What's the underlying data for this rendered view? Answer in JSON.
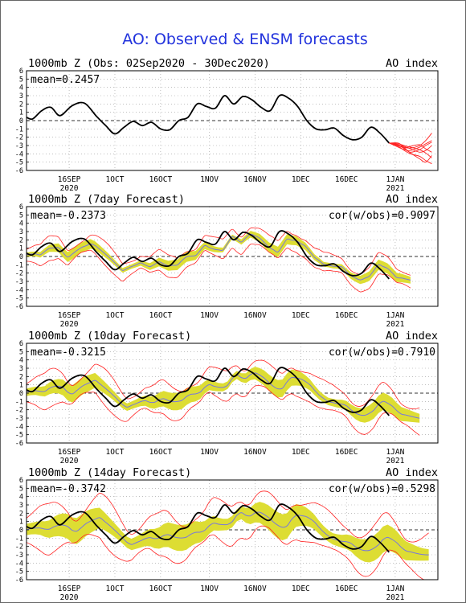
{
  "title": "AO: Observed & ENSM forecasts",
  "colors": {
    "title": "#2233dd",
    "observed": "#000000",
    "ensemble_members": "#ff2222",
    "ensemble_mean": "#7777dd",
    "spread_band": "#dddd33",
    "grid": "#999999"
  },
  "x_ticks": [
    {
      "label": "16SEP",
      "year": "2020",
      "date": "2020-09-16"
    },
    {
      "label": "1OCT",
      "year": "",
      "date": "2020-10-01"
    },
    {
      "label": "16OCT",
      "year": "",
      "date": "2020-10-16"
    },
    {
      "label": "1NOV",
      "year": "",
      "date": "2020-11-01"
    },
    {
      "label": "16NOV",
      "year": "",
      "date": "2020-11-16"
    },
    {
      "label": "1DEC",
      "year": "",
      "date": "2020-12-01"
    },
    {
      "label": "16DEC",
      "year": "",
      "date": "2020-12-16"
    },
    {
      "label": "1JAN",
      "year": "2021",
      "date": "2021-01-01"
    }
  ],
  "y_ticks": [
    6,
    5,
    4,
    3,
    2,
    1,
    0,
    -1,
    -2,
    -3,
    -4,
    -5,
    -6
  ],
  "chart_data": [
    {
      "type": "line",
      "title": "1000mb Z (Obs: 02Sep2020 - 30Dec2020)",
      "right_title": "AO index",
      "stat_left": "mean=0.2457",
      "stat_right": "",
      "ylim": [
        -6,
        6
      ],
      "xlim": [
        "2020-09-02",
        "2021-01-15"
      ],
      "grid": true,
      "series": [
        {
          "role": "observed",
          "x": [
            "2020-09-02",
            "2020-09-04",
            "2020-09-07",
            "2020-09-10",
            "2020-09-13",
            "2020-09-17",
            "2020-09-21",
            "2020-09-25",
            "2020-09-28",
            "2020-10-01",
            "2020-10-04",
            "2020-10-07",
            "2020-10-10",
            "2020-10-13",
            "2020-10-16",
            "2020-10-19",
            "2020-10-22",
            "2020-10-25",
            "2020-10-28",
            "2020-10-31",
            "2020-11-03",
            "2020-11-06",
            "2020-11-09",
            "2020-11-12",
            "2020-11-15",
            "2020-11-18",
            "2020-11-21",
            "2020-11-24",
            "2020-11-27",
            "2020-11-30",
            "2020-12-03",
            "2020-12-06",
            "2020-12-09",
            "2020-12-12",
            "2020-12-15",
            "2020-12-18",
            "2020-12-21",
            "2020-12-24",
            "2020-12-27",
            "2020-12-30"
          ],
          "values": [
            0.4,
            0.2,
            1.2,
            1.6,
            0.6,
            1.8,
            2.1,
            0.5,
            -0.6,
            -1.6,
            -0.8,
            -0.1,
            -0.6,
            -0.2,
            -1.0,
            -1.1,
            0.0,
            0.4,
            2.0,
            1.7,
            1.5,
            3.0,
            2.0,
            2.9,
            2.5,
            1.6,
            1.2,
            3.0,
            2.7,
            1.7,
            0.0,
            -1.0,
            -1.1,
            -0.9,
            -1.8,
            -2.3,
            -2.0,
            -0.8,
            -1.5,
            -2.7
          ]
        },
        {
          "role": "ensemble_members",
          "members": [
            [
              -2.7,
              -2.7,
              -3.2,
              -3.3,
              -3.0,
              -2.4,
              -1.5
            ],
            [
              -2.7,
              -2.9,
              -3.4,
              -3.8,
              -3.5,
              -3.0,
              -2.6
            ],
            [
              -2.7,
              -3.0,
              -3.3,
              -3.1,
              -2.9,
              -3.4,
              -3.8
            ],
            [
              -2.7,
              -3.1,
              -3.6,
              -4.0,
              -4.3,
              -4.8,
              -5.2
            ],
            [
              -2.7,
              -2.8,
              -3.0,
              -3.2,
              -3.5,
              -3.9,
              -4.5
            ],
            [
              -2.7,
              -3.2,
              -3.5,
              -3.6,
              -3.2,
              -2.8,
              -2.4
            ],
            [
              -2.7,
              -2.9,
              -3.3,
              -3.9,
              -4.6,
              -5.0,
              -4.2
            ],
            [
              -2.7,
              -3.0,
              -3.1,
              -3.4,
              -3.8,
              -3.6,
              -3.0
            ]
          ],
          "x": [
            "2020-12-30",
            "2021-01-02",
            "2021-01-04",
            "2021-01-06",
            "2021-01-09",
            "2021-01-11",
            "2021-01-13"
          ]
        }
      ]
    },
    {
      "type": "line",
      "title": "1000mb Z (7day Forecast)",
      "right_title": "AO index",
      "stat_left": "mean=-0.2373",
      "stat_right": "cor(w/obs)=0.9097",
      "ylim": [
        -6,
        6
      ],
      "xlim": [
        "2020-09-02",
        "2021-01-15"
      ],
      "grid": true,
      "forecast": {
        "lead_days": 7,
        "mean_offset": -0.35,
        "spread": 0.6,
        "envelope": 1.3,
        "extend_to": "2021-01-06"
      }
    },
    {
      "type": "line",
      "title": "1000mb Z (10day Forecast)",
      "right_title": "AO index",
      "stat_left": "mean=-0.3215",
      "stat_right": "cor(w/obs)=0.7910",
      "ylim": [
        -6,
        6
      ],
      "xlim": [
        "2020-09-02",
        "2021-01-15"
      ],
      "grid": true,
      "forecast": {
        "lead_days": 10,
        "mean_offset": -0.4,
        "spread": 1.0,
        "envelope": 2.0,
        "extend_to": "2021-01-09"
      }
    },
    {
      "type": "line",
      "title": "1000mb Z (14day Forecast)",
      "right_title": "AO index",
      "stat_left": "mean=-0.3742",
      "stat_right": "cor(w/obs)=0.5298",
      "ylim": [
        -6,
        6
      ],
      "xlim": [
        "2020-09-02",
        "2021-01-15"
      ],
      "grid": true,
      "forecast": {
        "lead_days": 14,
        "mean_offset": -0.45,
        "spread": 1.5,
        "envelope": 2.7,
        "extend_to": "2021-01-13"
      }
    }
  ]
}
